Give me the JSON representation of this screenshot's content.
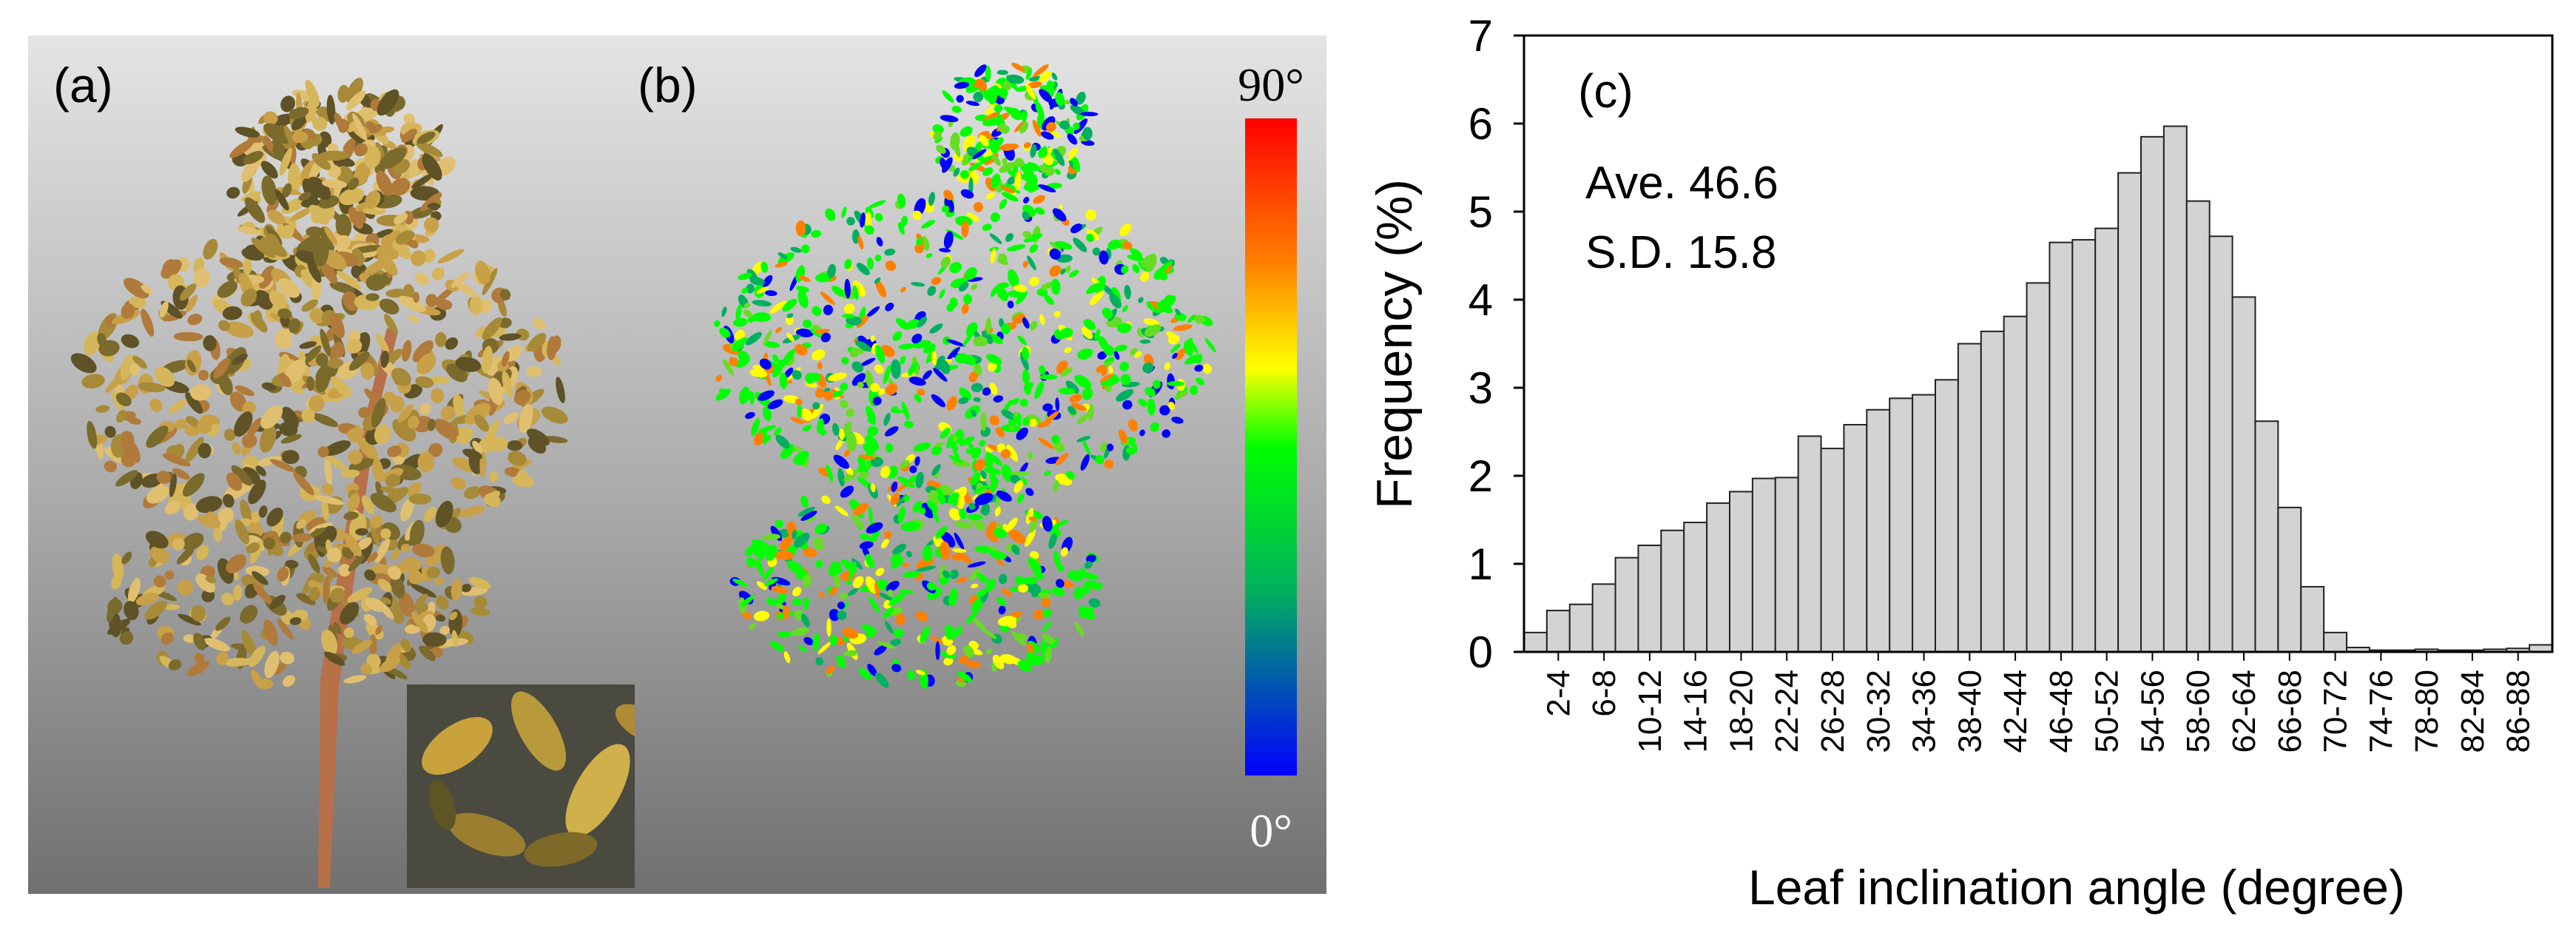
{
  "panels": {
    "a": {
      "label": "(a)"
    },
    "b": {
      "label": "(b)"
    },
    "c": {
      "label": "(c)"
    }
  },
  "colorbar": {
    "max_label": "90°",
    "min_label": "0°",
    "colors": [
      "#ff0000",
      "#ff8000",
      "#ffff00",
      "#00ff00",
      "#00b060",
      "#0000ff"
    ]
  },
  "stats": {
    "average": "Ave. 46.6",
    "sd": "S.D. 15.8"
  },
  "chart_data": {
    "type": "bar",
    "title": "(c)",
    "xlabel": "Leaf inclination angle (degree)",
    "ylabel": "Frequency (%)",
    "ylim": [
      0,
      7
    ],
    "yticks": [
      0,
      1,
      2,
      3,
      4,
      5,
      6,
      7
    ],
    "categories": [
      "0-2",
      "2-4",
      "4-6",
      "6-8",
      "8-10",
      "10-12",
      "12-14",
      "14-16",
      "16-18",
      "18-20",
      "20-22",
      "22-24",
      "24-26",
      "26-28",
      "28-30",
      "30-32",
      "32-34",
      "34-36",
      "36-38",
      "38-40",
      "40-42",
      "42-44",
      "44-46",
      "46-48",
      "48-50",
      "50-52",
      "52-54",
      "54-56",
      "56-58",
      "58-60",
      "60-62",
      "62-64",
      "64-66",
      "66-68",
      "68-70",
      "70-72",
      "72-74",
      "74-76",
      "76-78",
      "78-80",
      "80-82",
      "82-84",
      "84-86",
      "86-88",
      "88-90"
    ],
    "values": [
      0.22,
      0.47,
      0.54,
      0.77,
      1.07,
      1.21,
      1.38,
      1.47,
      1.69,
      1.82,
      1.97,
      1.98,
      2.45,
      2.31,
      2.58,
      2.75,
      2.88,
      2.92,
      3.09,
      3.5,
      3.64,
      3.81,
      4.19,
      4.65,
      4.68,
      4.81,
      5.44,
      5.85,
      5.97,
      5.12,
      4.72,
      4.03,
      2.62,
      1.64,
      0.74,
      0.22,
      0.05,
      0.02,
      0.02,
      0.03,
      0.02,
      0.02,
      0.03,
      0.04,
      0.08
    ],
    "tick_labels": [
      "2-4",
      "6-8",
      "10-12",
      "14-16",
      "18-20",
      "22-24",
      "26-28",
      "30-32",
      "34-36",
      "38-40",
      "42-44",
      "46-48",
      "50-52",
      "54-56",
      "58-60",
      "62-64",
      "66-68",
      "70-72",
      "74-76",
      "78-80",
      "82-84",
      "86-88"
    ],
    "bar_color": "#d3d3d3"
  }
}
